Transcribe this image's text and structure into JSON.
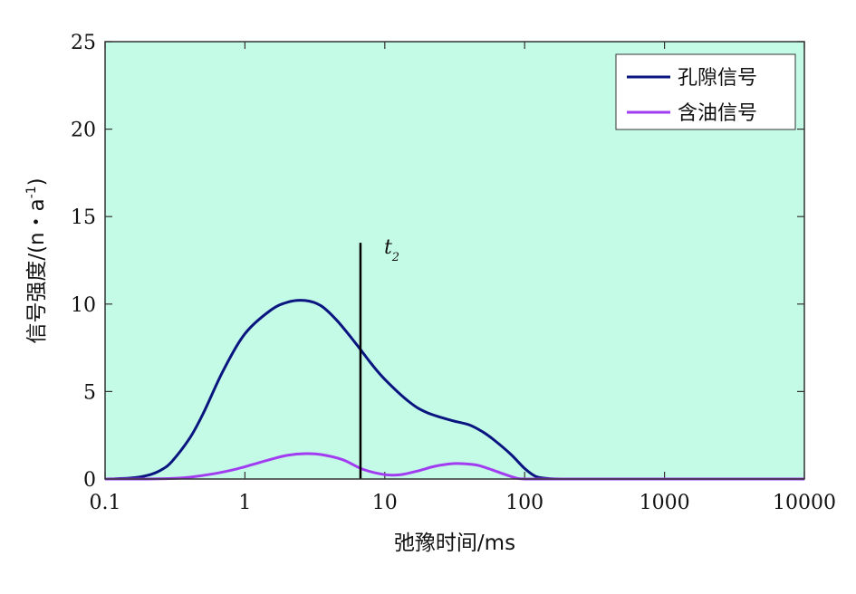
{
  "chart_data": {
    "type": "line",
    "x_scale": "log",
    "xlim": [
      0.1,
      10000
    ],
    "ylim": [
      0,
      25
    ],
    "x_ticks": [
      "0.1",
      "1",
      "10",
      "100",
      "1000",
      "10000"
    ],
    "y_ticks": [
      "0",
      "5",
      "10",
      "15",
      "20",
      "25"
    ],
    "xlabel": "弛豫时间/ms",
    "ylabel": "信号强度/(n・a",
    "ylabel_superscript": "-1",
    "ylabel_suffix": ")",
    "plot_background": "#c4fbe7",
    "legend_position": "top-right",
    "series": [
      {
        "name": "孔隙信号",
        "color": "#0a1580",
        "x": [
          0.1,
          0.15,
          0.2,
          0.25,
          0.3,
          0.4,
          0.5,
          0.7,
          1.0,
          1.5,
          2.0,
          2.7,
          3.5,
          4.5,
          6.0,
          8.0,
          10,
          15,
          20,
          30,
          40,
          50,
          60,
          80,
          100,
          120,
          150,
          200,
          500,
          1000,
          10000
        ],
        "y": [
          0.0,
          0.05,
          0.2,
          0.5,
          1.0,
          2.3,
          3.7,
          6.2,
          8.3,
          9.6,
          10.1,
          10.2,
          9.9,
          9.1,
          7.9,
          6.6,
          5.7,
          4.4,
          3.8,
          3.35,
          3.1,
          2.7,
          2.25,
          1.4,
          0.6,
          0.15,
          0.02,
          0.0,
          0.0,
          0.0,
          0.0
        ]
      },
      {
        "name": "含油信号",
        "color": "#a23cf0",
        "x": [
          0.1,
          0.2,
          0.3,
          0.4,
          0.6,
          0.8,
          1.0,
          1.5,
          2.0,
          2.7,
          3.5,
          5.0,
          7.0,
          10,
          13,
          17,
          22,
          28,
          35,
          45,
          55,
          70,
          85,
          100,
          200,
          1000,
          10000
        ],
        "y": [
          0.0,
          0.0,
          0.03,
          0.1,
          0.3,
          0.5,
          0.7,
          1.1,
          1.35,
          1.45,
          1.4,
          1.1,
          0.55,
          0.25,
          0.25,
          0.45,
          0.7,
          0.85,
          0.88,
          0.8,
          0.6,
          0.3,
          0.08,
          0.0,
          0.0,
          0.0,
          0.0
        ]
      }
    ],
    "annotation": {
      "label": "t",
      "subscript": "2",
      "x": 6.7,
      "y_top": 13.5,
      "color": "#000000"
    }
  }
}
